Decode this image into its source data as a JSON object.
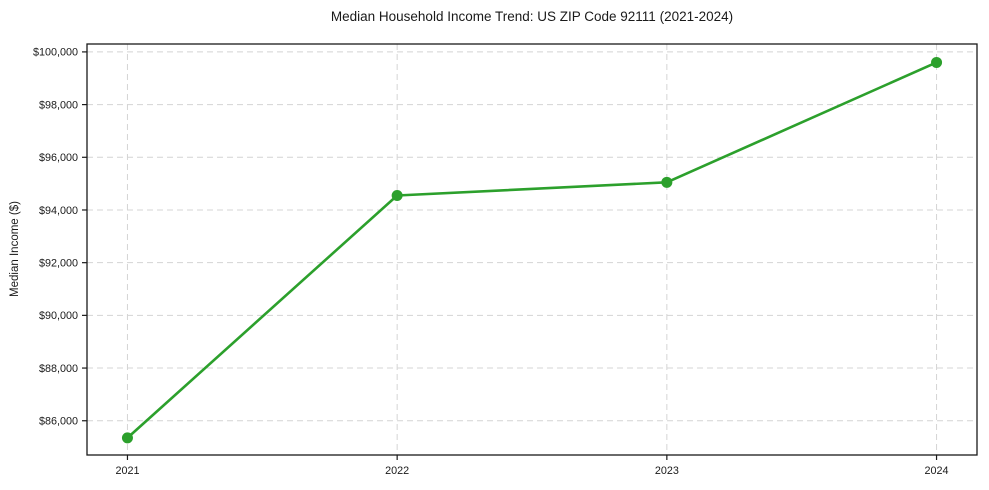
{
  "chart_data": {
    "type": "line",
    "title": "Median Household Income Trend: US ZIP Code 92111 (2021-2024)",
    "xlabel": "",
    "ylabel": "Median Income ($)",
    "x": [
      2021,
      2022,
      2023,
      2024
    ],
    "x_tick_labels": [
      "2021",
      "2022",
      "2023",
      "2024"
    ],
    "series": [
      {
        "name": "Median Household Income",
        "values": [
          85350,
          94550,
          95050,
          99600
        ]
      }
    ],
    "y_ticks": [
      86000,
      88000,
      90000,
      92000,
      94000,
      96000,
      98000,
      100000
    ],
    "y_tick_labels": [
      "$86,000",
      "$88,000",
      "$90,000",
      "$92,000",
      "$94,000",
      "$96,000",
      "$98,000",
      "$100,000"
    ],
    "xlim": [
      2020.85,
      2024.15
    ],
    "ylim": [
      84700,
      100300
    ],
    "grid": true,
    "grid_style": "dashed",
    "legend": null,
    "line_color": "#2ca02c",
    "marker": "circle",
    "marker_size": 11,
    "grid_color": "#d4d4d4",
    "spine_color": "#1a1a1a",
    "background_color": "#ffffff",
    "text_color": "#1a1a1a"
  }
}
